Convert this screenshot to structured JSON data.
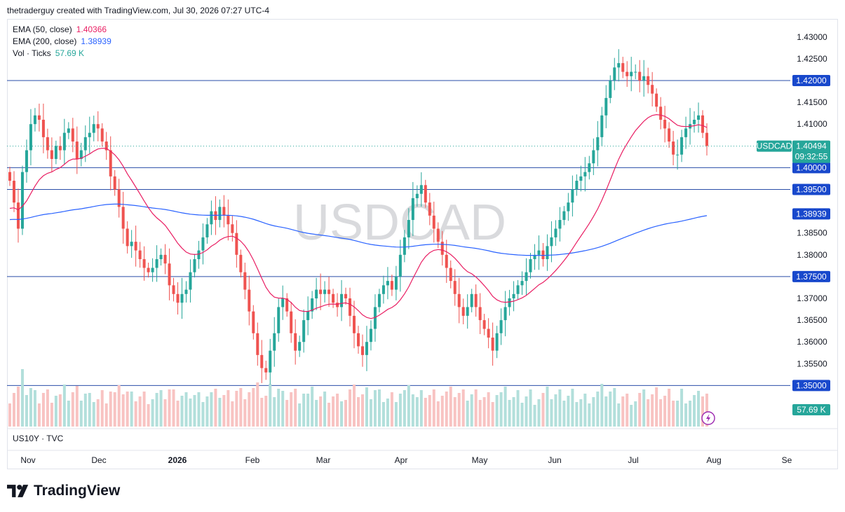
{
  "header": {
    "attribution": "thetraderguy created with TradingView.com, Jul 30, 2026 07:27 UTC-4"
  },
  "legend": {
    "ema50_label": "EMA (50, close)",
    "ema50_value": "1.40366",
    "ema200_label": "EMA (200, close)",
    "ema200_value": "1.38939",
    "vol_label": "Vol · Ticks",
    "vol_value": "57.69 K"
  },
  "subpane": {
    "label": "US10Y · TVC"
  },
  "watermark": "USDCAD",
  "brand": {
    "name": "TradingView"
  },
  "colors": {
    "up": "#26a69a",
    "down": "#ef5350",
    "ema50": "#e91e63",
    "ema200": "#2962ff",
    "hline": "#2a4ea8",
    "vol_up": "#b2dfdb",
    "vol_down": "#f8c3c2",
    "tag": "#1848cc"
  },
  "chart_data": {
    "type": "candlestick",
    "symbol": "USDCAD",
    "ylim": [
      1.347,
      1.432
    ],
    "y_ticks": [
      "1.43000",
      "1.42500",
      "1.41500",
      "1.41000",
      "1.38500",
      "1.38000",
      "1.37000",
      "1.36500",
      "1.36000",
      "1.35500"
    ],
    "x_ticks": [
      "Nov",
      "Dec",
      "2026",
      "Feb",
      "Mar",
      "Apr",
      "May",
      "Jun",
      "Jul",
      "Aug",
      "Se"
    ],
    "horizontal_levels": [
      "1.42000",
      "1.40000",
      "1.39500",
      "1.37500",
      "1.35000"
    ],
    "last_price": {
      "symbol": "USDCAD",
      "price": "1.40494",
      "countdown": "09:32:55"
    },
    "ema50_tag": "1.40366",
    "ema200_tag": "1.38939",
    "volume_tag": "57.69 K",
    "closes": [
      1.397,
      1.392,
      1.386,
      1.399,
      1.404,
      1.41,
      1.412,
      1.411,
      1.407,
      1.404,
      1.402,
      1.405,
      1.404,
      1.408,
      1.409,
      1.406,
      1.402,
      1.404,
      1.407,
      1.408,
      1.41,
      1.409,
      1.406,
      1.404,
      1.398,
      1.395,
      1.391,
      1.386,
      1.382,
      1.383,
      1.381,
      1.379,
      1.377,
      1.376,
      1.377,
      1.379,
      1.38,
      1.378,
      1.373,
      1.371,
      1.369,
      1.371,
      1.372,
      1.376,
      1.379,
      1.381,
      1.384,
      1.387,
      1.39,
      1.388,
      1.391,
      1.389,
      1.387,
      1.385,
      1.38,
      1.376,
      1.372,
      1.367,
      1.362,
      1.357,
      1.354,
      1.353,
      1.358,
      1.362,
      1.368,
      1.37,
      1.367,
      1.362,
      1.358,
      1.36,
      1.365,
      1.367,
      1.37,
      1.372,
      1.371,
      1.372,
      1.371,
      1.369,
      1.368,
      1.371,
      1.37,
      1.366,
      1.362,
      1.359,
      1.357,
      1.36,
      1.363,
      1.368,
      1.371,
      1.373,
      1.374,
      1.372,
      1.375,
      1.38,
      1.384,
      1.388,
      1.393,
      1.394,
      1.396,
      1.392,
      1.389,
      1.386,
      1.383,
      1.38,
      1.377,
      1.374,
      1.371,
      1.368,
      1.366,
      1.368,
      1.371,
      1.368,
      1.365,
      1.363,
      1.361,
      1.358,
      1.362,
      1.365,
      1.368,
      1.37,
      1.371,
      1.373,
      1.374,
      1.376,
      1.379,
      1.38,
      1.381,
      1.379,
      1.382,
      1.384,
      1.386,
      1.388,
      1.39,
      1.392,
      1.395,
      1.397,
      1.398,
      1.399,
      1.401,
      1.404,
      1.407,
      1.412,
      1.416,
      1.42,
      1.423,
      1.424,
      1.422,
      1.421,
      1.422,
      1.422,
      1.42,
      1.421,
      1.419,
      1.417,
      1.414,
      1.411,
      1.409,
      1.406,
      1.403,
      1.403,
      1.407,
      1.409,
      1.41,
      1.411,
      1.412,
      1.408,
      1.405
    ]
  }
}
